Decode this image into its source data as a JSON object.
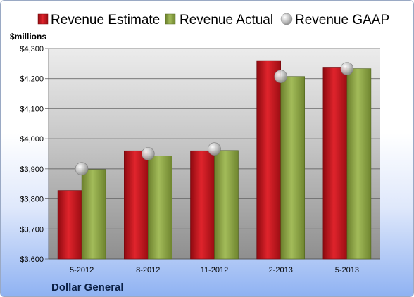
{
  "chart_data": {
    "type": "bar",
    "categories": [
      "5-2012",
      "8-2012",
      "11-2012",
      "2-2013",
      "5-2013"
    ],
    "series": [
      {
        "name": "Revenue Estimate",
        "kind": "bar",
        "color": "#c8121a",
        "values": [
          3828,
          3960,
          3960,
          4260,
          4238
        ]
      },
      {
        "name": "Revenue Actual",
        "kind": "bar",
        "color": "#8ea843",
        "values": [
          3898,
          3943,
          3961,
          4207,
          4233
        ]
      },
      {
        "name": "Revenue GAAP",
        "kind": "marker",
        "color": "#b8b8b8",
        "values": [
          3900,
          3950,
          3966,
          4207,
          4233
        ]
      }
    ],
    "ylabel": "$millions",
    "ylim": [
      3600,
      4300
    ],
    "yticks": [
      3600,
      3700,
      3800,
      3900,
      4000,
      4100,
      4200,
      4300
    ],
    "ytick_labels": [
      "$3,600",
      "$3,700",
      "$3,800",
      "$3,900",
      "$4,000",
      "$4,100",
      "$4,200",
      "$4,300"
    ],
    "grid": true,
    "legend_position": "top"
  },
  "footer": {
    "company": "Dollar General"
  }
}
